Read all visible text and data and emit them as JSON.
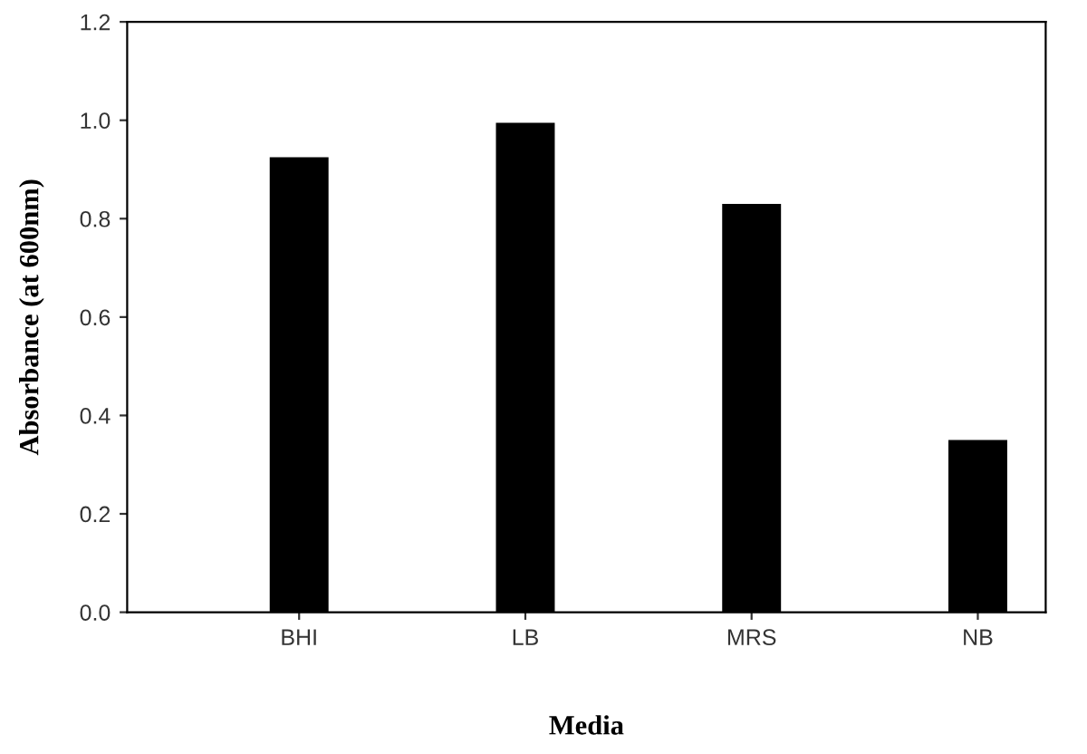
{
  "chart_data": {
    "type": "bar",
    "categories": [
      "BHI",
      "LB",
      "MRS",
      "NB"
    ],
    "values": [
      0.925,
      0.995,
      0.83,
      0.35
    ],
    "color": "#000000",
    "xlabel": "Media",
    "ylabel": "Absorbance (at 600nm)",
    "ylim": [
      0,
      1.2
    ],
    "yticks": [
      {
        "value": 0,
        "label": "0.0"
      },
      {
        "value": 0.2,
        "label": "0.2"
      },
      {
        "value": 0.4,
        "label": "0.4"
      },
      {
        "value": 0.6,
        "label": "0.6"
      },
      {
        "value": 0.8,
        "label": "0.8"
      },
      {
        "value": 1.0,
        "label": "1.0"
      },
      {
        "value": 1.2,
        "label": "1.2"
      }
    ],
    "grid": false,
    "legend": false
  }
}
